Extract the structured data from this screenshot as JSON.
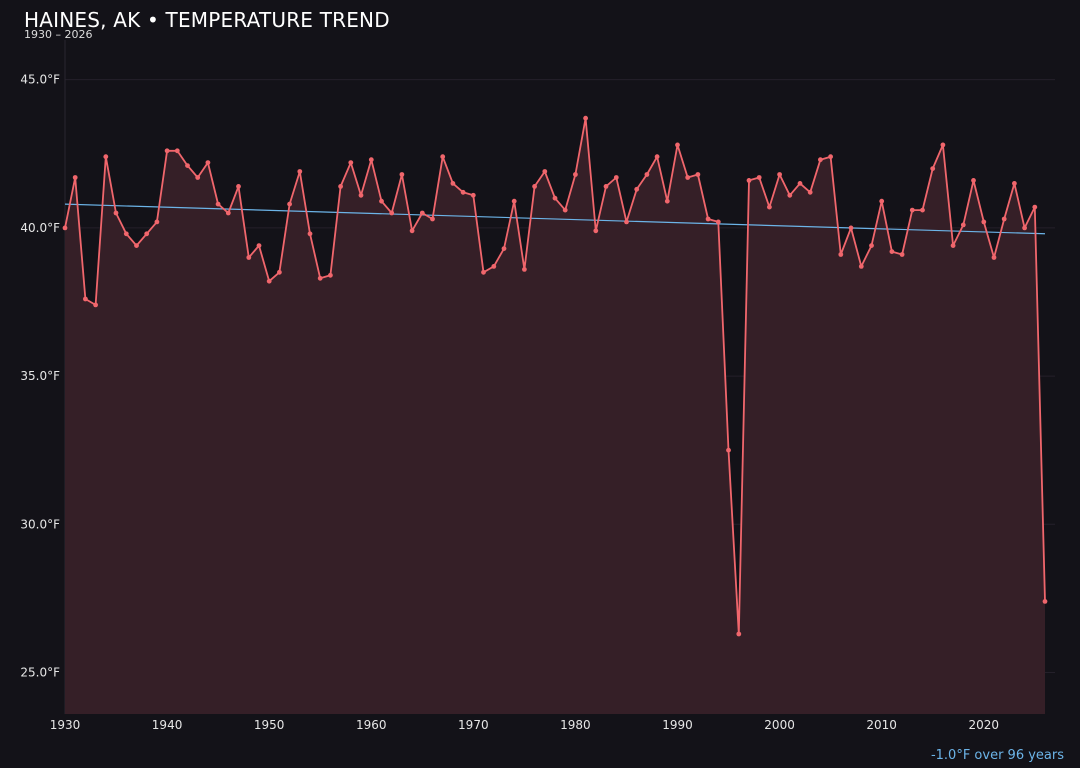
{
  "header": {
    "title": "HAINES, AK • TEMPERATURE TREND",
    "subtitle": "1930 – 2026"
  },
  "footer": {
    "trend_note": "-1.0°F over 96 years"
  },
  "colors": {
    "background": "#131218",
    "series": "#f0666c",
    "area_fill": "#351f27",
    "trend": "#6cb4e8",
    "grid": "#24202a"
  },
  "chart_data": {
    "type": "line",
    "title": "HAINES, AK • TEMPERATURE TREND",
    "subtitle": "1930 – 2026",
    "xlabel": "",
    "ylabel": "",
    "xlim": [
      1930,
      2026
    ],
    "ylim": [
      23.6,
      46.0
    ],
    "x_ticks": [
      1930,
      1940,
      1950,
      1960,
      1970,
      1980,
      1990,
      2000,
      2010,
      2020
    ],
    "y_ticks": [
      25.0,
      30.0,
      35.0,
      40.0,
      45.0
    ],
    "y_tick_labels": [
      "25.0°F",
      "30.0°F",
      "35.0°F",
      "40.0°F",
      "45.0°F"
    ],
    "grid": true,
    "area_fill": true,
    "series": [
      {
        "x": [
          1930,
          1931,
          1932,
          1933,
          1934,
          1935,
          1936,
          1937,
          1938,
          1939,
          1940,
          1941,
          1942,
          1943,
          1944,
          1945,
          1946,
          1947,
          1948,
          1949,
          1950,
          1951,
          1952,
          1953,
          1954,
          1955,
          1956,
          1957,
          1958,
          1959,
          1960,
          1961,
          1962,
          1963,
          1964,
          1965,
          1966,
          1967,
          1968,
          1969,
          1970,
          1971,
          1972,
          1973,
          1974,
          1975,
          1976,
          1977,
          1978,
          1979,
          1980,
          1981,
          1982,
          1983,
          1984,
          1985,
          1986,
          1987,
          1988,
          1989,
          1990,
          1991,
          1992,
          1993,
          1994,
          1995,
          1996,
          1997,
          1998,
          1999,
          2000,
          2001,
          2002,
          2003,
          2004,
          2005,
          2006,
          2007,
          2008,
          2009,
          2010,
          2011,
          2012,
          2013,
          2014,
          2015,
          2016,
          2017,
          2018,
          2019,
          2020,
          2021,
          2022,
          2023,
          2024,
          2025,
          2026
        ],
        "values": [
          40.0,
          41.7,
          37.6,
          37.4,
          42.4,
          40.5,
          39.8,
          39.4,
          39.8,
          40.2,
          42.6,
          42.6,
          42.1,
          41.7,
          42.2,
          40.8,
          40.5,
          41.4,
          39.0,
          39.4,
          38.2,
          38.5,
          40.8,
          41.9,
          39.8,
          38.3,
          38.4,
          41.4,
          42.2,
          41.1,
          42.3,
          40.9,
          40.5,
          41.8,
          39.9,
          40.5,
          40.3,
          42.4,
          41.5,
          41.2,
          41.1,
          38.5,
          38.7,
          39.3,
          40.9,
          38.6,
          41.4,
          41.9,
          41.0,
          40.6,
          41.8,
          43.7,
          39.9,
          41.4,
          41.7,
          40.2,
          41.3,
          41.8,
          42.4,
          40.9,
          42.8,
          41.7,
          41.8,
          40.3,
          40.2,
          32.5,
          26.3,
          41.6,
          41.7,
          40.7,
          41.8,
          41.1,
          41.5,
          41.2,
          42.3,
          42.4,
          39.1,
          40.0,
          38.7,
          39.4,
          40.9,
          39.2,
          39.1,
          40.6,
          40.6,
          42.0,
          42.8,
          39.4,
          40.1,
          41.6,
          40.2,
          39.0,
          40.3,
          41.5,
          40.0,
          40.7,
          27.4
        ]
      }
    ],
    "trend": {
      "from": [
        1930,
        40.8
      ],
      "to": [
        2026,
        39.8
      ],
      "label": "-1.0°F over 96 years"
    }
  }
}
